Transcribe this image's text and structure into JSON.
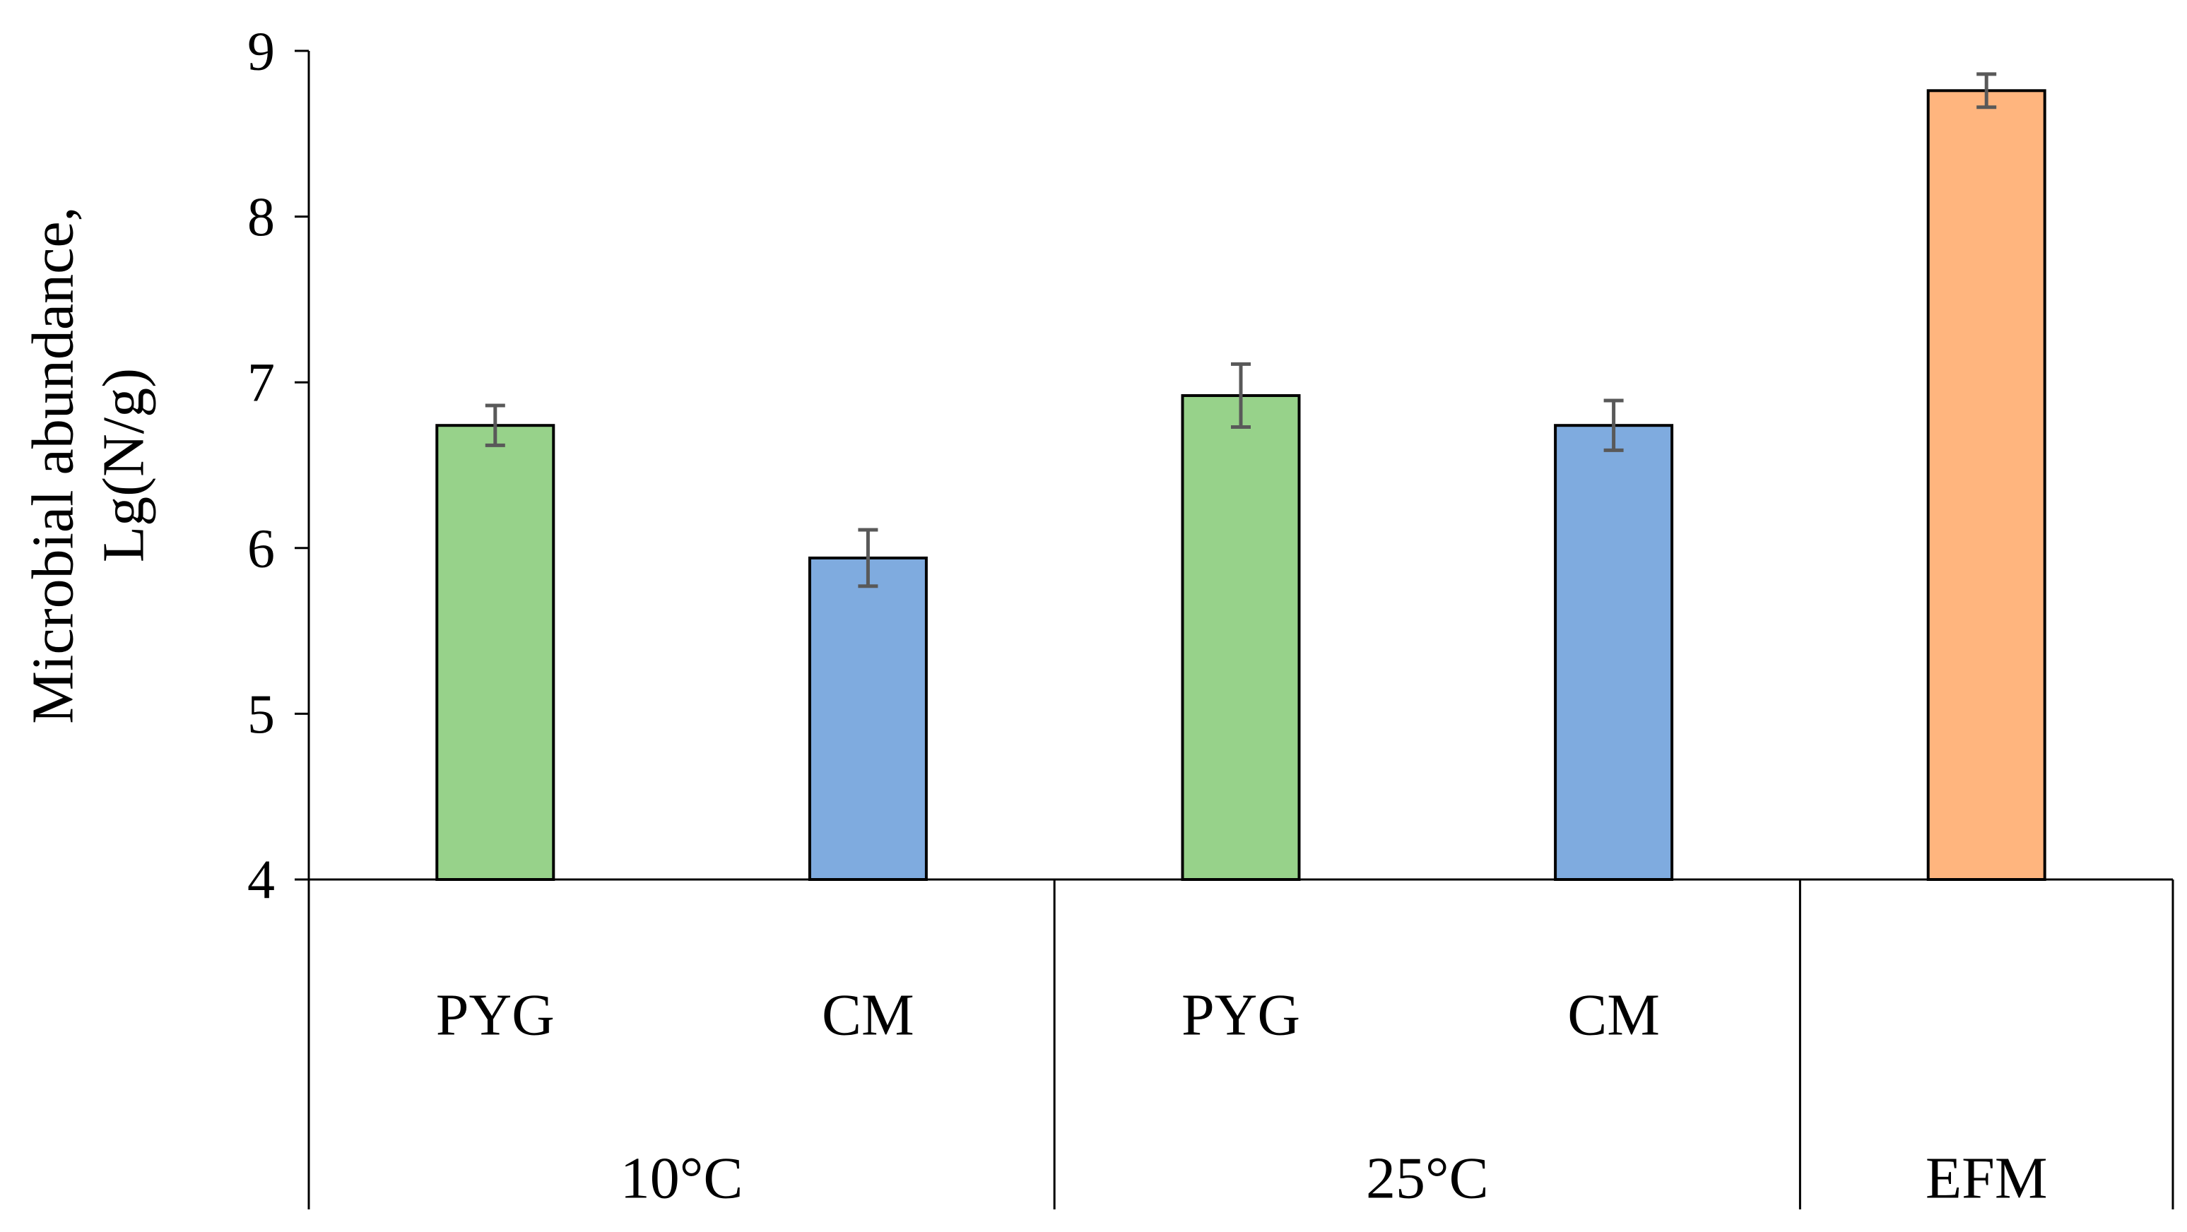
{
  "chart_data": {
    "type": "bar",
    "title": "",
    "ylabel_lines": [
      "Microbial abundance,",
      "Lg(N/g)"
    ],
    "xlabel": "",
    "ylim": [
      4,
      9
    ],
    "yticks": [
      4,
      5,
      6,
      7,
      8,
      9
    ],
    "grid": false,
    "groups": [
      {
        "label": "10°C",
        "bars": [
          {
            "label": "PYG",
            "value": 6.74,
            "error": 0.12,
            "color": "#97D28A"
          },
          {
            "label": "CM",
            "value": 5.94,
            "error": 0.17,
            "color": "#7FABDF"
          }
        ]
      },
      {
        "label": "25°C",
        "bars": [
          {
            "label": "PYG",
            "value": 6.92,
            "error": 0.19,
            "color": "#97D28A"
          },
          {
            "label": "CM",
            "value": 6.74,
            "error": 0.15,
            "color": "#7FABDF"
          }
        ]
      },
      {
        "label": "EFM",
        "bars": [
          {
            "label": "",
            "value": 8.76,
            "error": 0.1,
            "color": "#FFB57E"
          }
        ]
      }
    ]
  }
}
